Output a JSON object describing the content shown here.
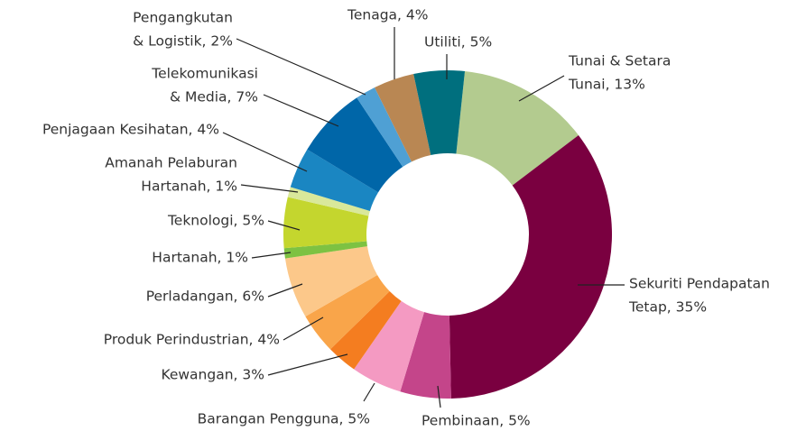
{
  "chart_data": {
    "type": "pie",
    "categories": [
      [
        "Tunai & Setara",
        "Tunai, 13%"
      ],
      [
        "Sekuriti Pendapatan",
        "Tetap, 35%"
      ],
      [
        "Pembinaan, 5%"
      ],
      [
        "Barangan Pengguna, 5%"
      ],
      [
        "Kewangan, 3%"
      ],
      [
        "Produk Perindustrian, 4%"
      ],
      [
        "Perladangan, 6%"
      ],
      [
        "Hartanah, 1%"
      ],
      [
        "Teknologi, 5%"
      ],
      [
        "Amanah Pelaburan",
        "Hartanah, 1%"
      ],
      [
        "Penjagaan Kesihatan, 4%"
      ],
      [
        "Telekomunikasi",
        "& Media, 7%"
      ],
      [
        "Pengangkutan",
        "& Logistik, 2%"
      ],
      [
        "Tenaga, 4%"
      ],
      [
        "Utiliti, 5%"
      ]
    ],
    "values": [
      13,
      35,
      5,
      5,
      3,
      4,
      6,
      1,
      5,
      1,
      4,
      7,
      2,
      4,
      5
    ],
    "colors": [
      "#b3cb8f",
      "#7a0040",
      "#c4458a",
      "#f49ac2",
      "#f47d20",
      "#f9a54a",
      "#fcc88a",
      "#7dc242",
      "#c4d62e",
      "#d9e89a",
      "#1a86c2",
      "#0066a8",
      "#4fa0d4",
      "#b98753",
      "#006f7e"
    ]
  }
}
